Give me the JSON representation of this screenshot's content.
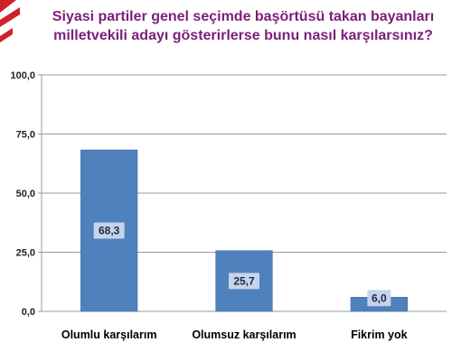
{
  "colors": {
    "title": "#7b1e7a",
    "bar": "#4f81bd",
    "bar_edge": "#3b6aa8",
    "label_box": "#c6d4ea",
    "grid": "#9a9a9a",
    "accent_red": "#d0202a"
  },
  "chart_data": {
    "type": "bar",
    "title": "Siyasi partiler genel seçimde başörtüsü takan bayanları milletvekili adayı gösterirlerse bunu nasıl karşılarsınız?",
    "title_lines": [
      "Siyasi partiler genel seçimde başörtüsü takan bayanları",
      "milletvekili adayı gösterirlerse bunu nasıl karşılarsınız?"
    ],
    "categories": [
      "Olumlu karşılarım",
      "Olumsuz karşılarım",
      "Fikrim yok"
    ],
    "values": [
      68.3,
      25.7,
      6.0
    ],
    "value_labels": [
      "68,3",
      "25,7",
      "6,0"
    ],
    "ylim": [
      0,
      100
    ],
    "yticks": [
      0,
      25,
      50,
      75,
      100
    ],
    "ytick_labels": [
      "0,0",
      "25,0",
      "50,0",
      "75,0",
      "100,0"
    ],
    "grid": true,
    "legend": "none",
    "xlabel": "",
    "ylabel": ""
  }
}
